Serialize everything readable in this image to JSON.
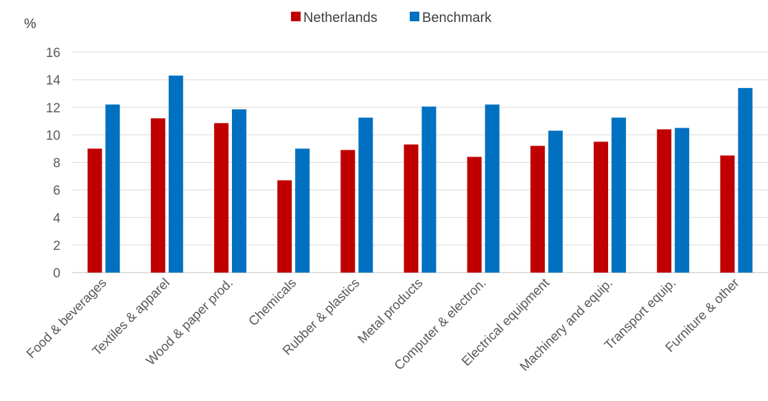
{
  "chart_data": {
    "type": "bar",
    "ylabel": "%",
    "ylim": [
      0,
      16
    ],
    "yticks": [
      0,
      2,
      4,
      6,
      8,
      10,
      12,
      14,
      16
    ],
    "grid": true,
    "legend_position": "top-center",
    "categories": [
      "Food & beverages",
      "Textiles & apparel",
      "Wood & paper prod.",
      "Chemicals",
      "Rubber & plastics",
      "Metal products",
      "Computer & electron.",
      "Electrical equipment",
      "Machinery and equip.",
      "Transport equip.",
      "Furniture & other"
    ],
    "series": [
      {
        "name": "Netherlands",
        "color": "#C00000",
        "values": [
          9.0,
          11.2,
          10.85,
          6.7,
          8.9,
          9.3,
          8.4,
          9.2,
          9.5,
          10.4,
          8.5
        ]
      },
      {
        "name": "Benchmark",
        "color": "#0070C0",
        "values": [
          12.2,
          14.3,
          11.85,
          9.0,
          11.25,
          12.05,
          12.2,
          10.3,
          11.25,
          10.5,
          13.4
        ]
      }
    ]
  }
}
